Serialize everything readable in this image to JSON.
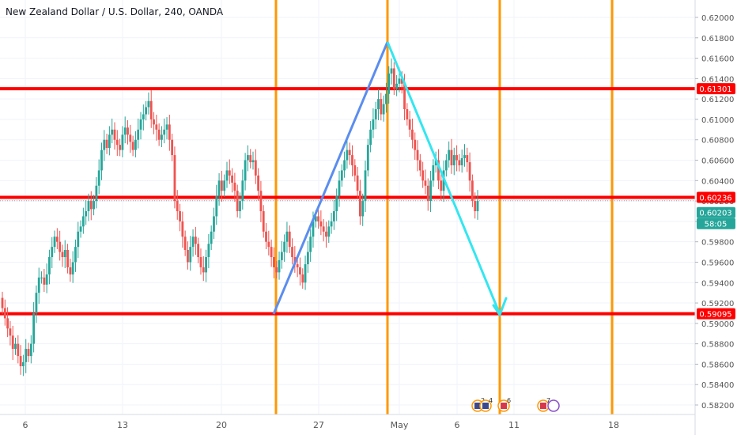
{
  "title": "New Zealand Dollar / U.S. Dollar, 240, OANDA",
  "colors": {
    "up": "#26a69a",
    "down": "#ef5350",
    "level": "#ff0000",
    "vline": "#ff9800",
    "trend_up": "#5b8def",
    "trend_down": "#33e6f0",
    "current": "#26a69a",
    "grid": "#f0f3fa",
    "axis_text": "#555555"
  },
  "axis": {
    "y_ticks": [
      "0.62000",
      "0.61800",
      "0.61600",
      "0.61400",
      "0.61200",
      "0.61000",
      "0.60800",
      "0.60600",
      "0.60400",
      "0.60200",
      "0.60000",
      "0.59800",
      "0.59600",
      "0.59400",
      "0.59200",
      "0.59000",
      "0.58800",
      "0.58600",
      "0.58400",
      "0.58200"
    ],
    "x_ticks": [
      "6",
      "13",
      "20",
      "27",
      "May",
      "6",
      "11",
      "18"
    ]
  },
  "price_labels": {
    "level_top": "0.61301",
    "level_mid": "0.60236",
    "current": "0.60203",
    "countdown": "58:05",
    "level_bottom": "0.59095"
  },
  "events": [
    {
      "text": "2",
      "icon": "calendar-flag-icon"
    },
    {
      "text": "4",
      "icon": "calendar-flag-icon"
    },
    {
      "text": "6",
      "icon": "us-flag-icon"
    },
    {
      "text": "7",
      "icon": "us-flag-icon"
    }
  ],
  "chart_data": {
    "type": "candlestick",
    "title": "New Zealand Dollar / U.S. Dollar, 240, OANDA",
    "ylim": [
      0.5812,
      0.621
    ],
    "x_ticks": [
      "6",
      "13",
      "20",
      "27",
      "May",
      "6",
      "11",
      "18"
    ],
    "horizontal_levels": [
      0.61301,
      0.60236,
      0.59095
    ],
    "current_price": 0.60203,
    "vertical_markers": [
      "Apr 23",
      "Apr 30",
      "May 7",
      "May 14"
    ],
    "trendlines": [
      {
        "from": [
          "Apr 23",
          0.591
        ],
        "to": [
          "Apr 30",
          0.6176
        ]
      },
      {
        "from": [
          "Apr 30",
          0.6176
        ],
        "to": [
          "May 7",
          0.591
        ]
      }
    ],
    "candles_close": [
      0.5915,
      0.5905,
      0.5895,
      0.5888,
      0.5875,
      0.588,
      0.5868,
      0.5858,
      0.5862,
      0.5875,
      0.5868,
      0.588,
      0.591,
      0.593,
      0.5945,
      0.5945,
      0.5938,
      0.5948,
      0.5965,
      0.5975,
      0.5985,
      0.598,
      0.597,
      0.5965,
      0.5972,
      0.5955,
      0.5948,
      0.596,
      0.5975,
      0.599,
      0.5995,
      0.6005,
      0.601,
      0.602,
      0.6012,
      0.602,
      0.6035,
      0.605,
      0.607,
      0.608,
      0.6072,
      0.6085,
      0.609,
      0.608,
      0.6075,
      0.607,
      0.6085,
      0.6092,
      0.6085,
      0.6078,
      0.607,
      0.608,
      0.609,
      0.61,
      0.6105,
      0.6112,
      0.6118,
      0.61,
      0.6095,
      0.609,
      0.608,
      0.6085,
      0.609,
      0.6095,
      0.608,
      0.6065,
      0.602,
      0.601,
      0.6,
      0.5985,
      0.5972,
      0.596,
      0.5975,
      0.5985,
      0.5978,
      0.5965,
      0.5955,
      0.595,
      0.5965,
      0.5978,
      0.599,
      0.6005,
      0.6025,
      0.604,
      0.603,
      0.604,
      0.605,
      0.6045,
      0.6038,
      0.603,
      0.601,
      0.602,
      0.604,
      0.606,
      0.6065,
      0.6058,
      0.606,
      0.6045,
      0.603,
      0.601,
      0.599,
      0.598,
      0.5975,
      0.5965,
      0.5955,
      0.595,
      0.5962,
      0.597,
      0.598,
      0.599,
      0.5975,
      0.5965,
      0.5958,
      0.5955,
      0.5948,
      0.594,
      0.5958,
      0.597,
      0.5985,
      0.6,
      0.6005,
      0.6,
      0.5995,
      0.599,
      0.5985,
      0.5995,
      0.6,
      0.601,
      0.6025,
      0.604,
      0.605,
      0.606,
      0.607,
      0.6065,
      0.6055,
      0.6045,
      0.603,
      0.6005,
      0.602,
      0.605,
      0.6075,
      0.609,
      0.61,
      0.611,
      0.612,
      0.6105,
      0.6115,
      0.6125,
      0.6145,
      0.615,
      0.613,
      0.6135,
      0.614,
      0.6135,
      0.611,
      0.61,
      0.609,
      0.608,
      0.607,
      0.606,
      0.605,
      0.604,
      0.6035,
      0.602,
      0.604,
      0.6055,
      0.606,
      0.604,
      0.603,
      0.605,
      0.606,
      0.607,
      0.6055,
      0.6065,
      0.606,
      0.6055,
      0.6062,
      0.6065,
      0.6058,
      0.604,
      0.602,
      0.601,
      0.602
    ]
  }
}
